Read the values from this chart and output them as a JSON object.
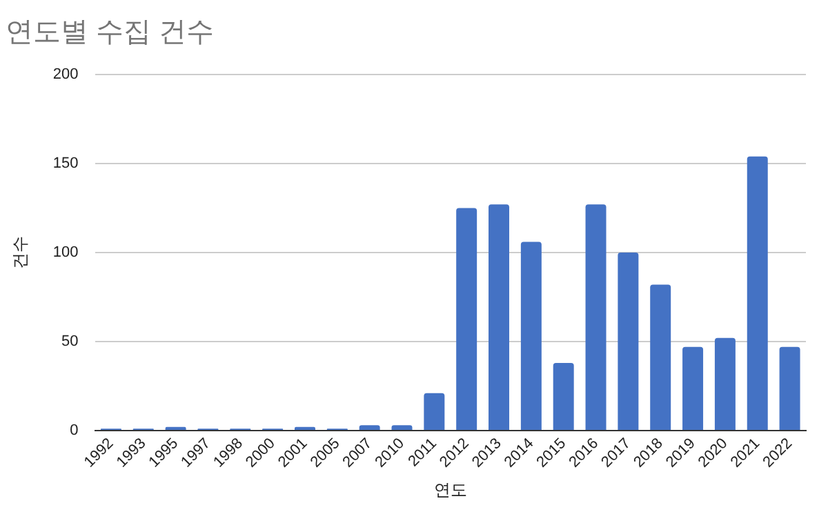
{
  "chart_data": {
    "type": "bar",
    "title": "연도별 수집 건수",
    "xlabel": "연도",
    "ylabel": "건수",
    "categories": [
      "1992",
      "1993",
      "1995",
      "1997",
      "1998",
      "2000",
      "2001",
      "2005",
      "2007",
      "2010",
      "2011",
      "2012",
      "2013",
      "2014",
      "2015",
      "2016",
      "2017",
      "2018",
      "2019",
      "2020",
      "2021",
      "2022"
    ],
    "values": [
      1,
      1,
      2,
      1,
      1,
      1,
      2,
      1,
      3,
      3,
      21,
      125,
      127,
      106,
      38,
      127,
      100,
      82,
      47,
      52,
      154,
      47
    ],
    "color": "#4472c4",
    "ylim": [
      0,
      200
    ],
    "yticks": [
      0,
      50,
      100,
      150,
      200
    ],
    "grid": "y",
    "legend": false
  }
}
